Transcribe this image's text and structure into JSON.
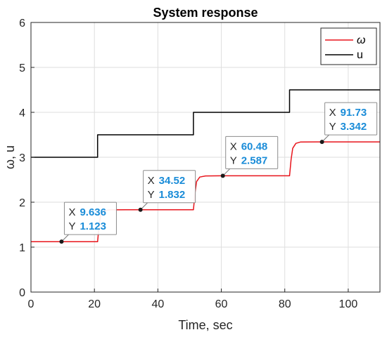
{
  "chart_data": {
    "type": "line",
    "title": "System response",
    "xlabel": "Time, sec",
    "ylabel": "ω, u",
    "xlim": [
      0,
      110
    ],
    "ylim": [
      0,
      6
    ],
    "xticks": [
      0,
      20,
      40,
      60,
      80,
      100
    ],
    "yticks": [
      0,
      1,
      2,
      3,
      4,
      5,
      6
    ],
    "grid": true,
    "legend_position": "top-right",
    "series": [
      {
        "name": "ω",
        "color": "#e8141b",
        "x": [
          0,
          21,
          21.5,
          22,
          23,
          25,
          30,
          51.2,
          51.7,
          52.2,
          53.2,
          55,
          60,
          81.5,
          82,
          82.5,
          83.5,
          85,
          90,
          110
        ],
        "y": [
          1.12,
          1.12,
          1.5,
          1.72,
          1.81,
          1.83,
          1.832,
          1.832,
          2.2,
          2.46,
          2.56,
          2.585,
          2.587,
          2.587,
          2.95,
          3.2,
          3.31,
          3.34,
          3.342,
          3.342
        ]
      },
      {
        "name": "u",
        "color": "#000000",
        "x": [
          0,
          21,
          21,
          51.2,
          51.2,
          81.5,
          81.5,
          110
        ],
        "y": [
          3,
          3,
          3.5,
          3.5,
          4,
          4,
          4.5,
          4.5
        ]
      }
    ],
    "datatips": [
      {
        "x": 9.636,
        "y": 1.123,
        "x_label": "X",
        "y_label": "Y",
        "x_text": "9.636",
        "y_text": "1.123"
      },
      {
        "x": 34.52,
        "y": 1.832,
        "x_label": "X",
        "y_label": "Y",
        "x_text": "34.52",
        "y_text": "1.832"
      },
      {
        "x": 60.48,
        "y": 2.587,
        "x_label": "X",
        "y_label": "Y",
        "x_text": "60.48",
        "y_text": "2.587"
      },
      {
        "x": 91.73,
        "y": 3.342,
        "x_label": "X",
        "y_label": "Y",
        "x_text": "91.73",
        "y_text": "3.342"
      }
    ],
    "datatip_value_color": "#1a8cd8"
  }
}
